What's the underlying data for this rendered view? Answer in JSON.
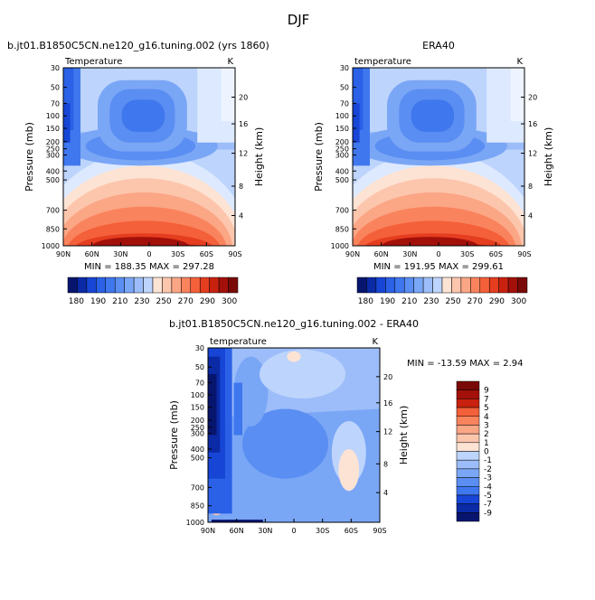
{
  "page_title": "DJF",
  "palette": {
    "colors": [
      "#08156e",
      "#0b2aa6",
      "#1746d6",
      "#2a61e6",
      "#3f77ee",
      "#5a8ef2",
      "#7aa6f6",
      "#9cbdf9",
      "#bdd4fc",
      "#dde9fe",
      "#fde3d4",
      "#fcc6ad",
      "#fba685",
      "#f9835d",
      "#f4603a",
      "#e53d1f",
      "#c8210f",
      "#a3100a",
      "#7a0a07"
    ]
  },
  "chart_data": [
    {
      "type": "heatmap",
      "title": "b.jt01.B1850C5CN.ne120_g16.tuning.002 (yrs 1860)",
      "field_label": "Temperature",
      "units": "K",
      "ylabel": "Pressure (mb)",
      "ylabel_right": "Height (km)",
      "x_ticks": [
        "90N",
        "60N",
        "30N",
        "0",
        "30S",
        "60S",
        "90S"
      ],
      "y_ticks": [
        "30",
        "50",
        "70",
        "100",
        "150",
        "200",
        "250",
        "300",
        "400",
        "500",
        "700",
        "850",
        "1000"
      ],
      "height_ticks": [
        "20",
        "16",
        "12",
        "8",
        "4"
      ],
      "stats": "MIN = 188.35   MAX = 297.28",
      "colorbar_labels": [
        "180",
        "190",
        "210",
        "230",
        "250",
        "270",
        "290",
        "300"
      ],
      "legend_position": "bottom"
    },
    {
      "type": "heatmap",
      "title": "ERA40",
      "field_label": "temperature",
      "units": "K",
      "ylabel": "Pressure (mb)",
      "ylabel_right": "Height (km)",
      "x_ticks": [
        "90N",
        "60N",
        "30N",
        "0",
        "30S",
        "60S",
        "90S"
      ],
      "y_ticks": [
        "30",
        "50",
        "70",
        "100",
        "150",
        "200",
        "250",
        "300",
        "400",
        "500",
        "700",
        "850",
        "1000"
      ],
      "height_ticks": [
        "20",
        "16",
        "12",
        "8",
        "4"
      ],
      "stats": "MIN = 191.95   MAX = 299.61",
      "colorbar_labels": [
        "180",
        "190",
        "210",
        "230",
        "250",
        "270",
        "290",
        "300"
      ],
      "legend_position": "bottom"
    },
    {
      "type": "heatmap",
      "title": "b.jt01.B1850C5CN.ne120_g16.tuning.002 - ERA40",
      "field_label": "temperature",
      "units": "K",
      "ylabel": "Pressure (mb)",
      "ylabel_right": "Height (km)",
      "x_ticks": [
        "90N",
        "60N",
        "30N",
        "0",
        "30S",
        "60S",
        "90S"
      ],
      "y_ticks": [
        "30",
        "50",
        "70",
        "100",
        "150",
        "200",
        "250",
        "300",
        "400",
        "500",
        "700",
        "850",
        "1000"
      ],
      "height_ticks": [
        "20",
        "16",
        "12",
        "8",
        "4"
      ],
      "stats": "MIN = -13.59   MAX =   2.94",
      "colorbar_labels": [
        "9",
        "7",
        "5",
        "4",
        "3",
        "2",
        "1",
        "0",
        "-1",
        "-2",
        "-3",
        "-4",
        "-5",
        "-7",
        "-9"
      ],
      "legend_position": "right"
    }
  ]
}
